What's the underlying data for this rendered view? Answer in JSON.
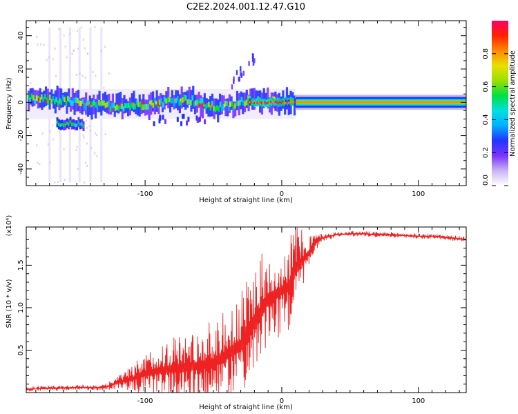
{
  "figure_title": "C2E2.2024.001.12.47.G10",
  "chart_data": [
    {
      "type": "heatmap",
      "title": "",
      "xlabel": "Height of straight line (km)",
      "ylabel": "Frequency (Hz)",
      "xlim": [
        -187,
        135
      ],
      "ylim": [
        -50,
        49
      ],
      "xticks": [
        -100,
        0,
        100
      ],
      "yticks": [
        -40,
        -20,
        0,
        20,
        40
      ],
      "colorbar": {
        "label": "Normalized spectral amplitude",
        "range": [
          0.0,
          1.0
        ],
        "ticks": [
          0.0,
          0.2,
          0.4,
          0.6,
          0.8
        ],
        "tick_labels": [
          "0.0",
          "0.2",
          "0.4",
          "0.6",
          "0.8"
        ],
        "colors": [
          "#ffffff",
          "#c8b4f4",
          "#7a33ff",
          "#2233ff",
          "#00b0ff",
          "#00e0e0",
          "#00e040",
          "#9ae000",
          "#e8e000",
          "#ff8800",
          "#ff2200",
          "#ff0066"
        ]
      },
      "band_ridge": [
        {
          "x": -187,
          "f": 2
        },
        {
          "x": -160,
          "f": 1
        },
        {
          "x": -140,
          "f": -2
        },
        {
          "x": -110,
          "f": -2
        },
        {
          "x": -90,
          "f": 0
        },
        {
          "x": -70,
          "f": 2
        },
        {
          "x": -50,
          "f": -3
        },
        {
          "x": -35,
          "f": -2
        },
        {
          "x": -25,
          "f": 2
        },
        {
          "x": -10,
          "f": 0
        },
        {
          "x": 10,
          "f": 0
        },
        {
          "x": 135,
          "f": 0
        }
      ],
      "side_lobe": {
        "x_range": [
          -165,
          -145
        ],
        "f": -13
      },
      "grid": false
    },
    {
      "type": "line",
      "title": "",
      "xlabel": "Height of straight line (km)",
      "ylabel": "SNR (10 * v/v)",
      "y_multiplier": "(x10⁴)",
      "xlim": [
        -187,
        135
      ],
      "ylim": [
        0.0,
        1.95
      ],
      "xticks": [
        -100,
        0,
        100
      ],
      "yticks": [
        0.5,
        1.0,
        1.5
      ],
      "ytick_labels": [
        "0.5",
        "1.0",
        "1.5"
      ],
      "series": [
        {
          "color": "#ee2222",
          "x": [
            -187,
            -170,
            -150,
            -130,
            -120,
            -110,
            -100,
            -90,
            -80,
            -70,
            -60,
            -50,
            -40,
            -30,
            -25,
            -20,
            -15,
            -10,
            -5,
            0,
            5,
            10,
            15,
            20,
            25,
            30,
            35,
            40,
            50,
            60,
            70,
            80,
            90,
            100,
            110,
            120,
            135
          ],
          "y": [
            0.04,
            0.05,
            0.06,
            0.06,
            0.12,
            0.16,
            0.22,
            0.26,
            0.28,
            0.3,
            0.32,
            0.35,
            0.45,
            0.55,
            0.7,
            0.85,
            0.95,
            1.1,
            1.15,
            1.2,
            1.25,
            1.45,
            1.55,
            1.65,
            1.78,
            1.82,
            1.84,
            1.86,
            1.87,
            1.87,
            1.86,
            1.86,
            1.85,
            1.84,
            1.84,
            1.83,
            1.8
          ],
          "spread": [
            0.03,
            0.03,
            0.03,
            0.03,
            0.08,
            0.15,
            0.25,
            0.35,
            0.4,
            0.45,
            0.45,
            0.5,
            0.55,
            0.6,
            0.7,
            0.75,
            0.7,
            0.6,
            0.55,
            0.5,
            0.55,
            0.65,
            0.35,
            0.25,
            0.1,
            0.05,
            0.04,
            0.03,
            0.03,
            0.03,
            0.03,
            0.03,
            0.03,
            0.03,
            0.03,
            0.03,
            0.03
          ]
        }
      ],
      "grid": false
    }
  ]
}
